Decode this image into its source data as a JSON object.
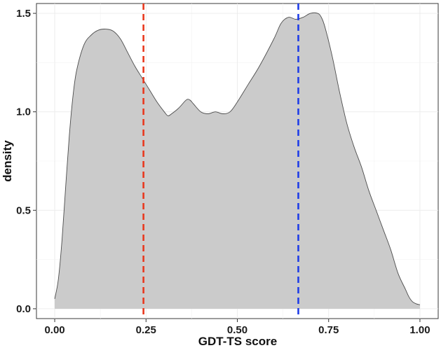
{
  "chart_data": {
    "type": "area",
    "xlabel": "GDT-TS score",
    "ylabel": "density",
    "xlim": [
      -0.05,
      1.05
    ],
    "ylim": [
      -0.05,
      1.55
    ],
    "x_ticks": [
      {
        "value": 0.0,
        "label": "0.00"
      },
      {
        "value": 0.25,
        "label": "0.25"
      },
      {
        "value": 0.5,
        "label": "0.50"
      },
      {
        "value": 0.75,
        "label": "0.75"
      },
      {
        "value": 1.0,
        "label": "1.00"
      }
    ],
    "y_ticks": [
      {
        "value": 0.0,
        "label": "0.0"
      },
      {
        "value": 0.5,
        "label": "0.5"
      },
      {
        "value": 1.0,
        "label": "1.0"
      },
      {
        "value": 1.5,
        "label": "1.5"
      }
    ],
    "grid": true,
    "fill_color": "#cbcbcb",
    "line_color": "#4d4d4d",
    "vlines": [
      {
        "x": 0.243,
        "color": "#e8391f"
      },
      {
        "x": 0.667,
        "color": "#1f3de8"
      }
    ],
    "density": {
      "x": [
        0.0,
        0.01,
        0.02,
        0.03,
        0.04,
        0.05,
        0.06,
        0.08,
        0.1,
        0.12,
        0.14,
        0.16,
        0.18,
        0.2,
        0.22,
        0.24,
        0.26,
        0.28,
        0.3,
        0.31,
        0.32,
        0.34,
        0.36,
        0.37,
        0.38,
        0.4,
        0.42,
        0.44,
        0.46,
        0.48,
        0.5,
        0.53,
        0.56,
        0.6,
        0.62,
        0.64,
        0.66,
        0.68,
        0.7,
        0.72,
        0.73,
        0.74,
        0.76,
        0.78,
        0.8,
        0.82,
        0.84,
        0.86,
        0.88,
        0.9,
        0.92,
        0.94,
        0.96,
        0.97,
        0.98,
        0.99,
        1.0
      ],
      "y": [
        0.05,
        0.15,
        0.35,
        0.62,
        0.88,
        1.08,
        1.21,
        1.34,
        1.39,
        1.415,
        1.42,
        1.41,
        1.37,
        1.3,
        1.23,
        1.17,
        1.11,
        1.05,
        1.0,
        0.98,
        0.99,
        1.02,
        1.06,
        1.06,
        1.04,
        1.0,
        0.99,
        1.0,
        0.99,
        1.0,
        1.05,
        1.14,
        1.23,
        1.37,
        1.45,
        1.48,
        1.47,
        1.48,
        1.5,
        1.5,
        1.48,
        1.43,
        1.28,
        1.1,
        0.94,
        0.82,
        0.72,
        0.6,
        0.5,
        0.4,
        0.3,
        0.18,
        0.1,
        0.06,
        0.035,
        0.025,
        0.02
      ]
    }
  }
}
